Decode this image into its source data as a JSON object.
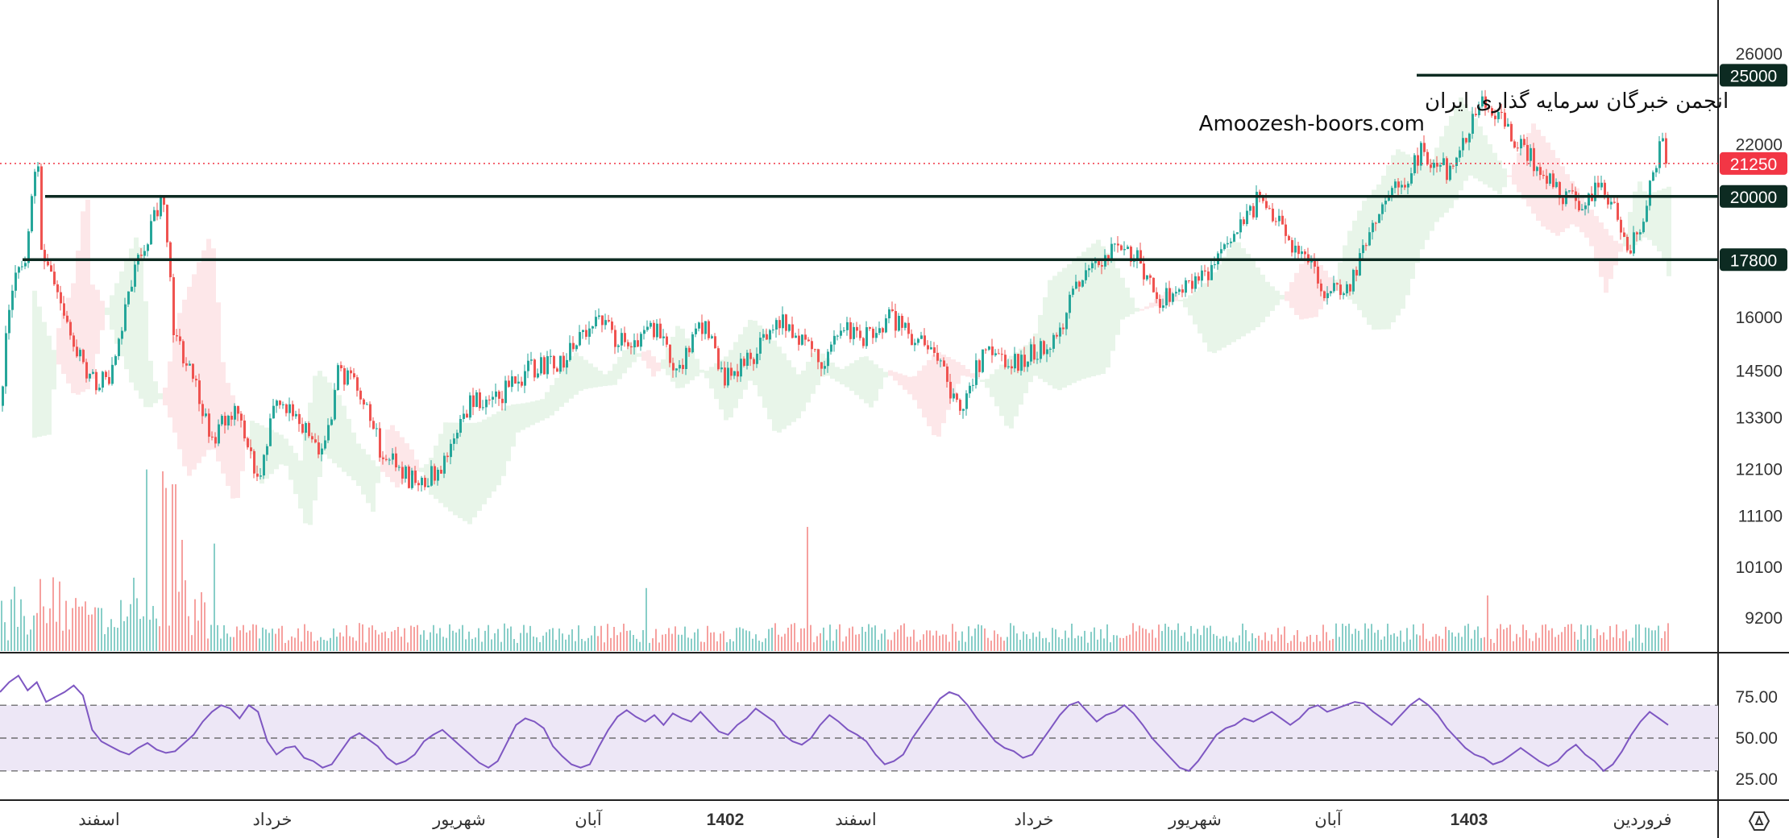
{
  "watermark": {
    "line1": "انجمن خبرگان سرمایه گذاری ایران",
    "line2": "Amoozesh-boors.com"
  },
  "price_axis_ticks": [
    "26000",
    "22000",
    "16000",
    "14500",
    "13300",
    "12100",
    "11100",
    "10100",
    "9200"
  ],
  "rsi_axis_ticks": [
    "75.00",
    "50.00",
    "25.00"
  ],
  "time_axis_labels": [
    {
      "text": "اسفند",
      "bold": false
    },
    {
      "text": "خرداد",
      "bold": false
    },
    {
      "text": "شهریور",
      "bold": false
    },
    {
      "text": "آبان",
      "bold": false
    },
    {
      "text": "1402",
      "bold": true
    },
    {
      "text": "اسفند",
      "bold": false
    },
    {
      "text": "خرداد",
      "bold": false
    },
    {
      "text": "شهریور",
      "bold": false
    },
    {
      "text": "آبان",
      "bold": false
    },
    {
      "text": "1403",
      "bold": true
    },
    {
      "text": "فروردین",
      "bold": false
    }
  ],
  "levels": [
    {
      "value": 25000,
      "label": "25000"
    },
    {
      "value": 20000,
      "label": "20000"
    },
    {
      "value": 17800,
      "label": "17800"
    }
  ],
  "last_price": {
    "value": 21250,
    "label": "21250"
  },
  "colors": {
    "up": "#26a69a",
    "down": "#ef5350",
    "level": "#0d2b22",
    "last_price_badge": "#f23645",
    "rsi_line": "#7e57c2",
    "rsi_band": "#ede7f6",
    "cloud_bull": "#e8f5e9",
    "cloud_bear": "#fde7e9"
  },
  "settings_icon": "hexagon-settings-icon",
  "chart_data": [
    {
      "type": "candlestick",
      "y_scale": "log",
      "ylim": [
        8700,
        27500
      ],
      "trajectory": [
        [
          0,
          13600
        ],
        [
          10,
          16500
        ],
        [
          30,
          18000
        ],
        [
          45,
          21500
        ],
        [
          50,
          17800
        ],
        [
          60,
          17500
        ],
        [
          80,
          16000
        ],
        [
          100,
          14800
        ],
        [
          120,
          14100
        ],
        [
          140,
          14500
        ],
        [
          160,
          17000
        ],
        [
          180,
          18500
        ],
        [
          200,
          20000
        ],
        [
          215,
          15500
        ],
        [
          240,
          14200
        ],
        [
          260,
          12800
        ],
        [
          290,
          13500
        ],
        [
          320,
          11900
        ],
        [
          340,
          13800
        ],
        [
          380,
          13100
        ],
        [
          400,
          12400
        ],
        [
          420,
          14600
        ],
        [
          450,
          13700
        ],
        [
          470,
          12600
        ],
        [
          500,
          12000
        ],
        [
          520,
          11700
        ],
        [
          560,
          12500
        ],
        [
          580,
          13600
        ],
        [
          620,
          13900
        ],
        [
          660,
          14600
        ],
        [
          700,
          14800
        ],
        [
          740,
          16000
        ],
        [
          780,
          15000
        ],
        [
          810,
          15700
        ],
        [
          840,
          14400
        ],
        [
          870,
          15800
        ],
        [
          900,
          14300
        ],
        [
          930,
          14800
        ],
        [
          960,
          16000
        ],
        [
          990,
          15500
        ],
        [
          1020,
          14800
        ],
        [
          1040,
          15800
        ],
        [
          1070,
          15400
        ],
        [
          1100,
          16000
        ],
        [
          1130,
          15500
        ],
        [
          1160,
          14800
        ],
        [
          1190,
          13500
        ],
        [
          1220,
          15000
        ],
        [
          1250,
          14600
        ],
        [
          1280,
          15000
        ],
        [
          1310,
          15300
        ],
        [
          1330,
          17000
        ],
        [
          1360,
          17600
        ],
        [
          1390,
          18400
        ],
        [
          1410,
          17800
        ],
        [
          1440,
          16500
        ],
        [
          1470,
          17000
        ],
        [
          1500,
          17500
        ],
        [
          1530,
          18400
        ],
        [
          1560,
          19900
        ],
        [
          1580,
          19200
        ],
        [
          1600,
          18300
        ],
        [
          1620,
          17700
        ],
        [
          1640,
          16800
        ],
        [
          1660,
          16700
        ],
        [
          1680,
          17300
        ],
        [
          1700,
          19000
        ],
        [
          1720,
          20000
        ],
        [
          1740,
          20500
        ],
        [
          1760,
          21700
        ],
        [
          1780,
          21300
        ],
        [
          1800,
          20900
        ],
        [
          1820,
          22500
        ],
        [
          1840,
          24000
        ],
        [
          1860,
          23200
        ],
        [
          1880,
          22200
        ],
        [
          1910,
          21000
        ],
        [
          1940,
          20000
        ],
        [
          1960,
          19800
        ],
        [
          1980,
          20400
        ],
        [
          2000,
          19800
        ],
        [
          2020,
          18000
        ],
        [
          2040,
          19500
        ],
        [
          2060,
          22000
        ],
        [
          2070,
          21250
        ]
      ],
      "volume_spikes": [
        [
          180,
          0.98
        ],
        [
          200,
          0.97
        ],
        [
          205,
          0.88
        ],
        [
          215,
          0.9
        ],
        [
          225,
          0.6
        ],
        [
          265,
          0.58
        ],
        [
          1000,
          0.67
        ],
        [
          1845,
          0.3
        ],
        [
          800,
          0.34
        ]
      ]
    },
    {
      "type": "line",
      "name": "",
      "ylim": [
        20,
        90
      ],
      "ticks": [
        25,
        50,
        75
      ],
      "band": [
        30,
        70
      ],
      "values": [
        78,
        84,
        88,
        79,
        84,
        72,
        75,
        78,
        82,
        76,
        55,
        48,
        45,
        42,
        40,
        44,
        47,
        43,
        41,
        42,
        47,
        52,
        60,
        66,
        70,
        68,
        62,
        70,
        66,
        48,
        40,
        44,
        45,
        38,
        36,
        32,
        34,
        42,
        50,
        53,
        49,
        45,
        38,
        34,
        36,
        40,
        48,
        52,
        55,
        50,
        45,
        40,
        35,
        32,
        36,
        47,
        58,
        62,
        60,
        56,
        45,
        39,
        34,
        32,
        34,
        45,
        55,
        63,
        67,
        63,
        60,
        64,
        58,
        65,
        62,
        60,
        66,
        60,
        54,
        52,
        58,
        62,
        68,
        64,
        60,
        52,
        48,
        46,
        50,
        58,
        64,
        60,
        55,
        52,
        48,
        40,
        34,
        36,
        40,
        50,
        58,
        66,
        74,
        78,
        76,
        70,
        62,
        55,
        48,
        44,
        42,
        38,
        40,
        48,
        56,
        64,
        70,
        72,
        66,
        60,
        64,
        66,
        70,
        65,
        58,
        50,
        44,
        38,
        32,
        30,
        36,
        44,
        52,
        56,
        58,
        62,
        60,
        63,
        66,
        62,
        58,
        62,
        68,
        70,
        66,
        68,
        70,
        72,
        71,
        66,
        62,
        58,
        64,
        70,
        74,
        70,
        64,
        56,
        50,
        44,
        40,
        38,
        34,
        36,
        40,
        44,
        40,
        36,
        33,
        36,
        42,
        46,
        40,
        36,
        30,
        34,
        42,
        52,
        60,
        66,
        62,
        58
      ]
    }
  ]
}
